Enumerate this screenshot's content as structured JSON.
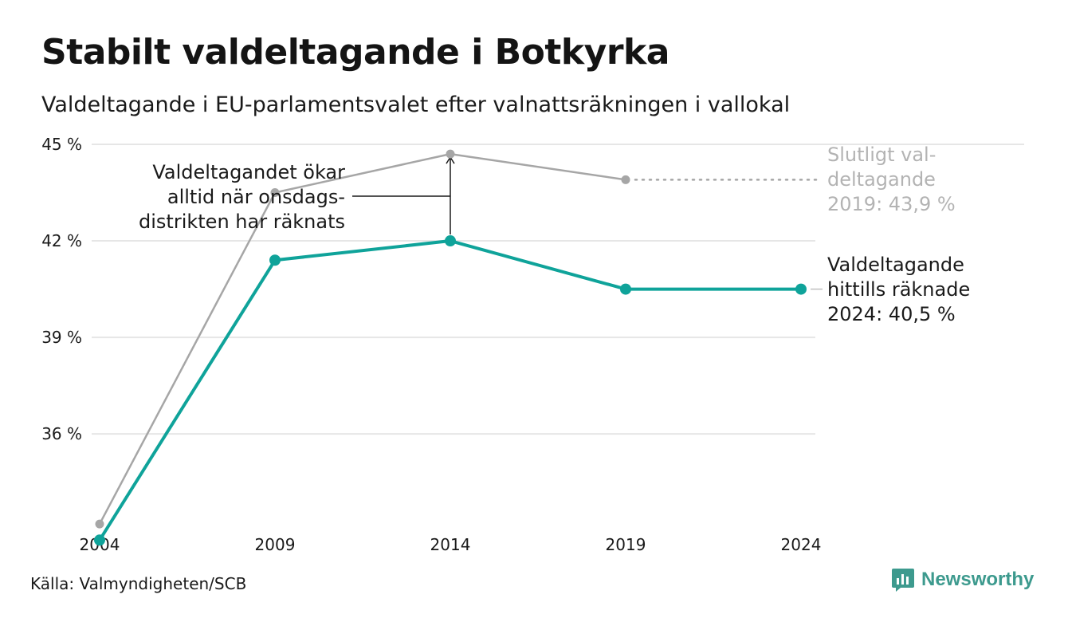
{
  "title": "Stabilt valdeltagande i Botkyrka",
  "subtitle": "Valdeltagande i EU-parlamentsvalet efter valnattsräkningen i vallokal",
  "source": "Källa: Valmyndigheten/SCB",
  "brand": "Newsworthy",
  "colors": {
    "accent": "#0fa39a",
    "final": "#a6a6a6",
    "grid": "#e6e6e6",
    "brand": "#3d9a8e"
  },
  "chart_data": {
    "type": "line",
    "x": [
      2004,
      2009,
      2014,
      2019,
      2024
    ],
    "x_tick_labels": [
      "2004",
      "2009",
      "2014",
      "2019",
      "2024"
    ],
    "ylim": [
      33.5,
      45
    ],
    "y_ticks": [
      36,
      39,
      42,
      45
    ],
    "y_tick_labels": [
      "36 %",
      "39 %",
      "42 %",
      "45 %"
    ],
    "grid": true,
    "series": [
      {
        "key": "counted",
        "color": "#0fa39a",
        "values": [
          32.7,
          41.4,
          42.0,
          40.5,
          40.5
        ]
      },
      {
        "key": "final",
        "color": "#a6a6a6",
        "values": [
          33.2,
          43.5,
          44.7,
          43.9,
          null
        ]
      }
    ],
    "annotations": {
      "increase_note": [
        "Valdeltagandet ökar",
        "alltid när onsdags-",
        "distrikten har räknats"
      ],
      "final_label": [
        "Slutligt val-",
        "deltagande",
        "2019: 43,9 %"
      ],
      "counted_label": [
        "Valdeltagande",
        "hittills räknade",
        "2024: 40,5 %"
      ]
    }
  }
}
